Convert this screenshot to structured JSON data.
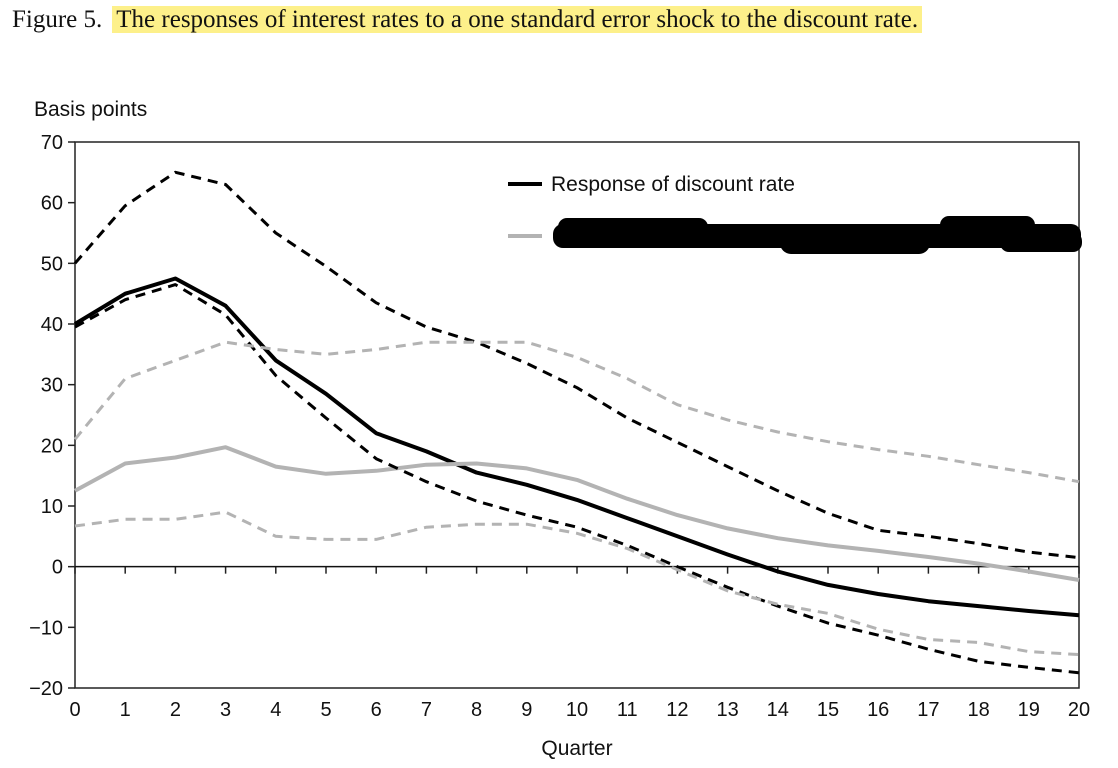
{
  "figure": {
    "label": "Figure 5.",
    "title": "The responses of interest rates to a one standard error shock to the discount rate."
  },
  "chart_data": {
    "type": "line",
    "ylabel": "Basis points",
    "xlabel": "Quarter",
    "xlim": [
      0,
      20
    ],
    "ylim": [
      -20,
      70
    ],
    "xticks": [
      0,
      1,
      2,
      3,
      4,
      5,
      6,
      7,
      8,
      9,
      10,
      11,
      12,
      13,
      14,
      15,
      16,
      17,
      18,
      19,
      20
    ],
    "yticks": [
      -20,
      -10,
      0,
      10,
      20,
      30,
      40,
      50,
      60,
      70
    ],
    "ytick_labels": [
      "−20",
      "−10",
      "0",
      "10",
      "20",
      "30",
      "40",
      "50",
      "60",
      "70"
    ],
    "grid": false,
    "legend_position": "top-right",
    "x": [
      0,
      1,
      2,
      3,
      4,
      5,
      6,
      7,
      8,
      9,
      10,
      11,
      12,
      13,
      14,
      15,
      16,
      17,
      18,
      19,
      20
    ],
    "series": [
      {
        "name": "Response of discount rate",
        "style": "solid",
        "color": "#000000",
        "values": [
          40,
          45,
          47.5,
          43,
          34,
          28.5,
          22,
          19,
          15.5,
          13.5,
          11,
          8,
          5,
          2,
          -0.8,
          -3,
          -4.5,
          -5.7,
          -6.5,
          -7.3,
          -8
        ]
      },
      {
        "name": "",
        "label_redacted": true,
        "style": "solid",
        "color": "#b3b3b3",
        "values": [
          12.5,
          17,
          18,
          19.7,
          16.5,
          15.3,
          15.8,
          16.8,
          17,
          16.2,
          14.3,
          11.2,
          8.5,
          6.3,
          4.7,
          3.5,
          2.6,
          1.6,
          0.5,
          -0.8,
          -2.2
        ]
      },
      {
        "name": "",
        "style": "dashed",
        "color": "#000000",
        "values": [
          50,
          59.5,
          65,
          63,
          55,
          49.5,
          43.5,
          39.5,
          37,
          33.5,
          29.5,
          24.5,
          20.5,
          16.5,
          12.5,
          8.8,
          6,
          5,
          3.8,
          2.4,
          1.5
        ]
      },
      {
        "name": "",
        "style": "dashed",
        "color": "#000000",
        "values": [
          39.5,
          44,
          46.5,
          41.5,
          31.5,
          24.5,
          17.8,
          14,
          10.8,
          8.5,
          6.5,
          3.5,
          0,
          -3.4,
          -6.5,
          -9.3,
          -11.3,
          -13.6,
          -15.6,
          -16.6,
          -17.5
        ]
      },
      {
        "name": "",
        "style": "dashed",
        "color": "#b3b3b3",
        "values": [
          21,
          31,
          34,
          37,
          35.8,
          35,
          35.8,
          37,
          37,
          37,
          34.5,
          31,
          26.7,
          24.2,
          22.2,
          20.6,
          19.3,
          18.2,
          16.8,
          15.5,
          14
        ]
      },
      {
        "name": "",
        "style": "dashed",
        "color": "#b3b3b3",
        "values": [
          6.7,
          7.8,
          7.8,
          9,
          5,
          4.5,
          4.5,
          6.5,
          7,
          7,
          5.5,
          3,
          -0.5,
          -4,
          -6.2,
          -7.7,
          -10.3,
          -12,
          -12.5,
          -14,
          -14.5
        ]
      }
    ]
  }
}
